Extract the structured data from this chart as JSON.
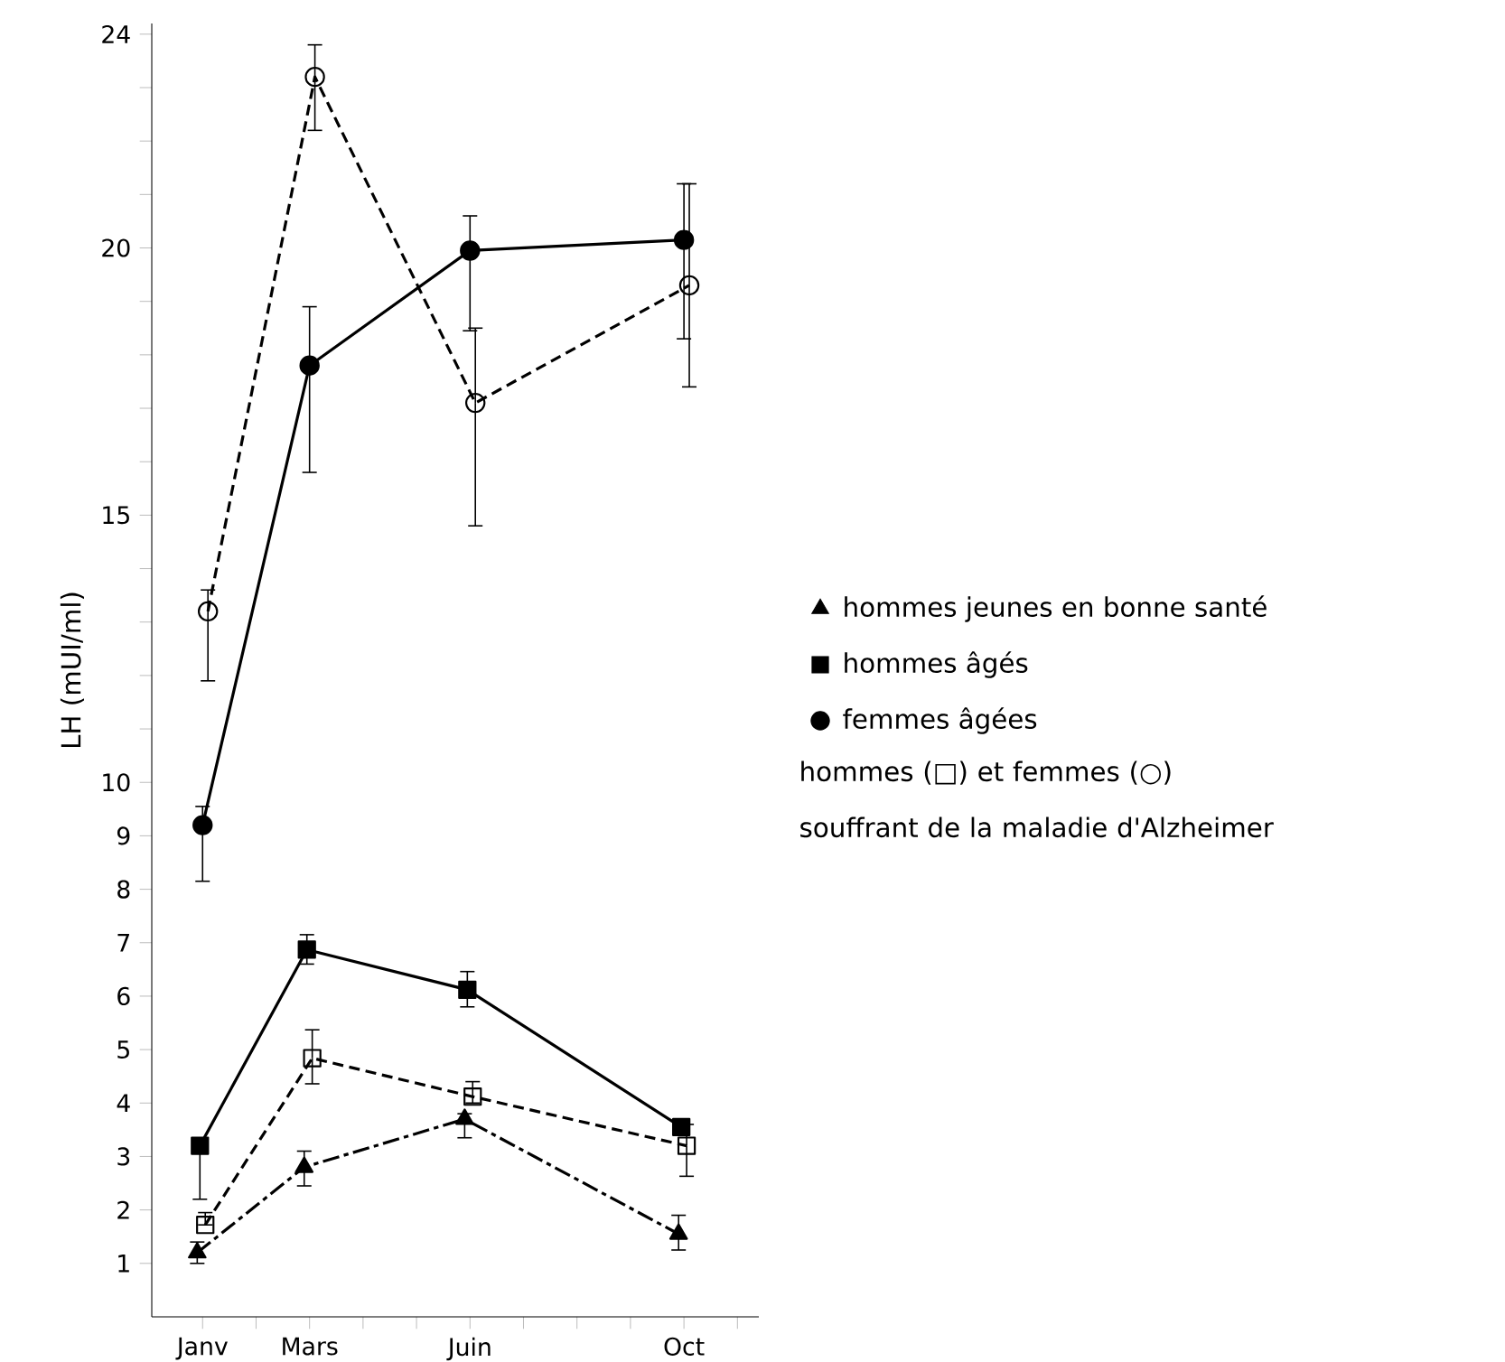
{
  "chart_data": {
    "type": "line",
    "ylabel": "LH (mUI/ml)",
    "categories": [
      "Janv",
      null,
      "Mars",
      null,
      null,
      "Juin",
      null,
      null,
      null,
      "Oct",
      null
    ],
    "ylim": [
      0,
      24.2
    ],
    "yticks": [
      1,
      2,
      3,
      4,
      5,
      6,
      7,
      8,
      9,
      10,
      {
        "value": 11,
        "label": null
      },
      {
        "value": 12,
        "label": null
      },
      {
        "value": 13,
        "label": null
      },
      {
        "value": 14,
        "label": null
      },
      15,
      {
        "value": 16,
        "label": null
      },
      {
        "value": 17,
        "label": null
      },
      {
        "value": 18,
        "label": null
      },
      {
        "value": 19,
        "label": null
      },
      20,
      {
        "value": 21,
        "label": null
      },
      {
        "value": 22,
        "label": null
      },
      {
        "value": 23,
        "label": null
      },
      24
    ],
    "grid": false,
    "legend": "right",
    "series": [
      {
        "name": "hommes jeunes en bonne santé",
        "color": "#000000",
        "marker": "triangle",
        "line_style": "dashdot",
        "values": [
          1.2,
          null,
          2.8,
          null,
          null,
          3.7,
          null,
          null,
          null,
          1.55,
          null
        ],
        "errors": [
          [
            1.0,
            1.4
          ],
          null,
          [
            2.45,
            3.1
          ],
          null,
          null,
          [
            3.35,
            3.8
          ],
          null,
          null,
          null,
          [
            1.25,
            1.9
          ],
          null
        ]
      },
      {
        "name": "hommes âgés",
        "color": "#000000",
        "marker": "square",
        "line_style": "solid",
        "values": [
          3.2,
          null,
          6.87,
          null,
          null,
          6.12,
          null,
          null,
          null,
          3.55,
          null
        ],
        "errors": [
          [
            2.2,
            3.2
          ],
          null,
          [
            6.6,
            7.15
          ],
          null,
          null,
          [
            5.8,
            6.46
          ],
          null,
          null,
          null,
          [
            3.45,
            3.65
          ],
          null
        ]
      },
      {
        "name": "femmes âgées",
        "color": "#000000",
        "marker": "circle",
        "line_style": "solid",
        "values": [
          9.2,
          null,
          17.8,
          null,
          null,
          19.95,
          null,
          null,
          null,
          20.15,
          null
        ],
        "errors": [
          [
            8.15,
            9.55
          ],
          null,
          [
            15.8,
            18.9
          ],
          null,
          null,
          [
            18.45,
            20.6
          ],
          null,
          null,
          null,
          [
            18.3,
            21.2
          ],
          null
        ]
      },
      {
        "color": "#000000",
        "marker": "square",
        "line_style": "dashed",
        "values": [
          1.72,
          null,
          4.84,
          null,
          null,
          4.12,
          null,
          null,
          null,
          3.2,
          null
        ],
        "errors": [
          [
            1.72,
            1.95
          ],
          null,
          [
            4.36,
            5.37
          ],
          null,
          null,
          [
            4.0,
            4.4
          ],
          null,
          null,
          null,
          [
            2.63,
            3.6
          ],
          null
        ]
      },
      {
        "color": "#000000",
        "marker": "circle",
        "line_style": "dashed",
        "values": [
          13.2,
          null,
          23.2,
          null,
          null,
          17.1,
          null,
          null,
          null,
          19.3,
          null
        ],
        "errors": [
          [
            11.9,
            13.6
          ],
          null,
          [
            22.2,
            23.8
          ],
          null,
          null,
          [
            14.8,
            18.5
          ],
          null,
          null,
          null,
          [
            17.4,
            21.2
          ],
          null
        ]
      }
    ],
    "annotations": [
      "hommes (□) et femmes (○) souffrant de la maladie d'Alzheimer"
    ]
  }
}
